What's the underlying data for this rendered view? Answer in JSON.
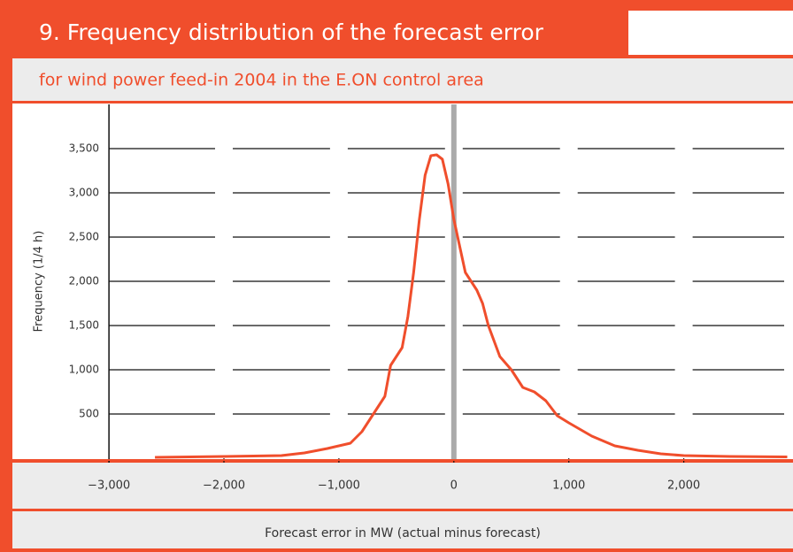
{
  "chart_data": {
    "type": "line",
    "title": "9. Frequency distribution of the forecast error",
    "subtitle": "for wind power feed-in 2004 in the E.ON control area",
    "xlabel": "Forecast error in MW (actual minus forecast)",
    "ylabel": "Frequency (1/4 h)",
    "x": [
      -2600,
      -2000,
      -1500,
      -1300,
      -1100,
      -900,
      -800,
      -700,
      -600,
      -550,
      -450,
      -400,
      -350,
      -300,
      -250,
      -200,
      -150,
      -100,
      -50,
      0,
      50,
      100,
      200,
      250,
      300,
      400,
      500,
      600,
      700,
      800,
      900,
      1000,
      1200,
      1400,
      1600,
      1800,
      2000,
      2400,
      2900
    ],
    "series": [
      {
        "name": "Frequency",
        "color": "#f04e2c",
        "values": [
          10,
          20,
          30,
          60,
          110,
          170,
          300,
          500,
          700,
          1050,
          1250,
          1600,
          2100,
          2700,
          3200,
          3420,
          3430,
          3380,
          3100,
          2700,
          2400,
          2100,
          1900,
          1750,
          1500,
          1150,
          1000,
          800,
          750,
          650,
          480,
          400,
          250,
          140,
          90,
          50,
          30,
          20,
          15
        ]
      }
    ],
    "xlim": [
      -3840,
      2950
    ],
    "ylim": [
      0,
      4000
    ],
    "xticks": [
      {
        "value": -3000,
        "label": "−3,000"
      },
      {
        "value": -2000,
        "label": "−2,000"
      },
      {
        "value": -1000,
        "label": "−1,000"
      },
      0,
      {
        "value": 1000,
        "label": "1,000"
      },
      {
        "value": 2000,
        "label": "2,000"
      }
    ],
    "yticks": [
      500,
      {
        "value": 1000,
        "label": "1,000"
      },
      {
        "value": 1500,
        "label": "1,500"
      },
      {
        "value": 2000,
        "label": "2,000"
      },
      {
        "value": 2500,
        "label": "2,500"
      },
      {
        "value": 3000,
        "label": "3,000"
      },
      {
        "value": 3500,
        "label": "3,500"
      }
    ],
    "grid": true
  }
}
